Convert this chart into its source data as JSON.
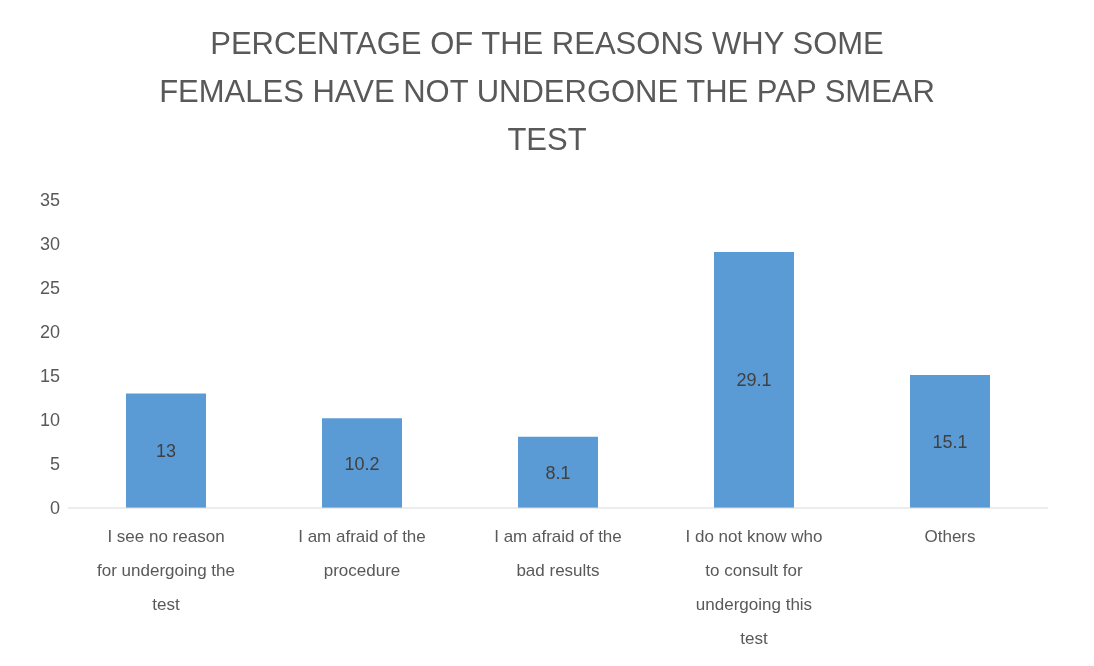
{
  "chart_data": {
    "type": "bar",
    "title": "PERCENTAGE OF THE REASONS WHY SOME FEMALES HAVE NOT UNDERGONE THE PAP SMEAR TEST",
    "categories": [
      "I see no reason for undergoing the test",
      "I am afraid of the procedure",
      "I am afraid of the bad results",
      "I do not know who to consult for undergoing this test",
      "Others"
    ],
    "values": [
      13,
      10.2,
      8.1,
      29.1,
      15.1
    ],
    "color": "#5b9bd5",
    "ylim": [
      0,
      35
    ],
    "yticks": [
      0,
      5,
      10,
      15,
      20,
      25,
      30,
      35
    ],
    "grid": false,
    "data_labels": true
  }
}
